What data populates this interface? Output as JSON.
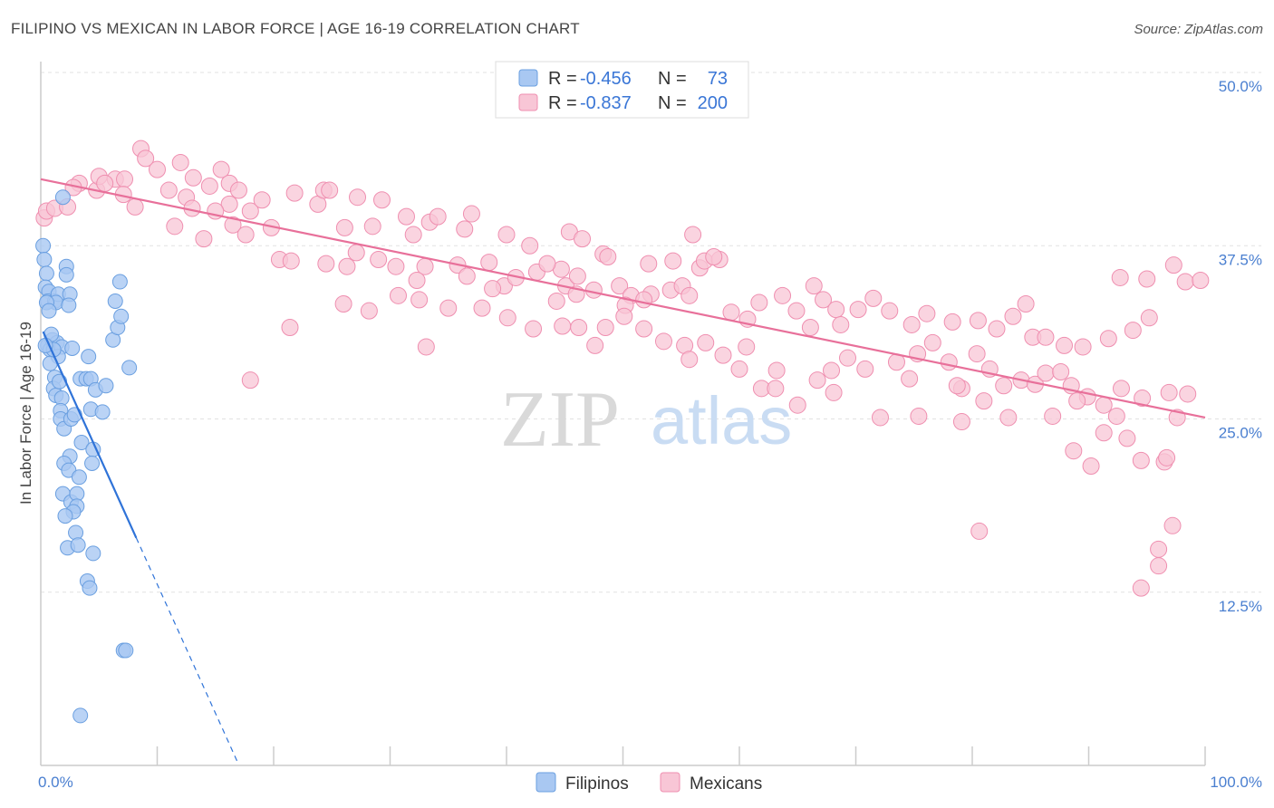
{
  "header": {
    "title": "FILIPINO VS MEXICAN IN LABOR FORCE | AGE 16-19 CORRELATION CHART",
    "source": "Source: ZipAtlas.com"
  },
  "watermark": {
    "zip": "ZIP",
    "atlas": "atlas"
  },
  "legend_top": [
    {
      "r_label": "R =",
      "r_value": "-0.456",
      "n_label": "N =",
      "n_value": "73",
      "color": "#8ab4f0"
    },
    {
      "r_label": "R =",
      "r_value": "-0.837",
      "n_label": "N =",
      "n_value": "200",
      "color": "#f4a6c0"
    }
  ],
  "legend_bottom": [
    {
      "label": "Filipinos",
      "color": "#8ab4f0"
    },
    {
      "label": "Mexicans",
      "color": "#f4a6c0"
    }
  ],
  "colors": {
    "filipino_fill": "#a9c8f2",
    "filipino_stroke": "#6a9fe0",
    "filipino_line": "#2f73d8",
    "mexican_fill": "#f8c6d6",
    "mexican_stroke": "#ef8fb0",
    "mexican_line": "#e8709a",
    "value_text": "#3a76d6",
    "grid": "#e2e2e2"
  },
  "chart_data": {
    "type": "scatter",
    "title": "FILIPINO VS MEXICAN IN LABOR FORCE | AGE 16-19 CORRELATION CHART",
    "xlabel": "",
    "ylabel": "In Labor Force | Age 16-19",
    "xlim": [
      0,
      100
    ],
    "ylim": [
      0,
      50
    ],
    "x_tick_labels": [
      "0.0%",
      "100.0%"
    ],
    "y_ticks": [
      12.5,
      25.0,
      37.5,
      50.0
    ],
    "y_tick_labels": [
      "12.5%",
      "25.0%",
      "37.5%",
      "50.0%"
    ],
    "grid": true,
    "series": [
      {
        "name": "Filipinos",
        "r": -0.456,
        "n": 73,
        "trend": {
          "x_start": 0.2,
          "y_start": 31.3,
          "x_end_solid": 8.2,
          "x_end_dashed": 17.0,
          "slope": -1.86
        },
        "points": [
          [
            0.2,
            37.5
          ],
          [
            0.3,
            36.5
          ],
          [
            0.5,
            35.5
          ],
          [
            0.4,
            34.5
          ],
          [
            0.7,
            34.2
          ],
          [
            0.6,
            33.5
          ],
          [
            1.2,
            33.5
          ],
          [
            1.5,
            34.0
          ],
          [
            2.5,
            34.0
          ],
          [
            1.3,
            33.4
          ],
          [
            2.4,
            33.2
          ],
          [
            2.2,
            36.0
          ],
          [
            2.2,
            35.4
          ],
          [
            1.9,
            41.0
          ],
          [
            0.5,
            33.4
          ],
          [
            0.6,
            30.3
          ],
          [
            0.8,
            30.0
          ],
          [
            1.0,
            30.7
          ],
          [
            1.4,
            30.5
          ],
          [
            1.8,
            30.2
          ],
          [
            1.5,
            29.5
          ],
          [
            0.8,
            29.0
          ],
          [
            1.2,
            28.0
          ],
          [
            1.1,
            27.2
          ],
          [
            1.3,
            26.7
          ],
          [
            1.8,
            26.5
          ],
          [
            3.4,
            27.9
          ],
          [
            3.9,
            27.9
          ],
          [
            4.3,
            27.9
          ],
          [
            4.7,
            27.1
          ],
          [
            1.7,
            25.6
          ],
          [
            1.7,
            25.0
          ],
          [
            2.0,
            24.3
          ],
          [
            2.6,
            25.0
          ],
          [
            4.3,
            25.7
          ],
          [
            5.3,
            25.5
          ],
          [
            3.5,
            23.3
          ],
          [
            4.5,
            22.8
          ],
          [
            2.5,
            22.3
          ],
          [
            2.0,
            21.8
          ],
          [
            2.4,
            21.3
          ],
          [
            3.3,
            20.8
          ],
          [
            4.4,
            21.8
          ],
          [
            6.2,
            30.7
          ],
          [
            6.4,
            33.5
          ],
          [
            6.6,
            31.6
          ],
          [
            6.9,
            32.4
          ],
          [
            7.6,
            28.7
          ],
          [
            1.9,
            19.6
          ],
          [
            2.6,
            19.0
          ],
          [
            3.1,
            19.6
          ],
          [
            3.1,
            18.7
          ],
          [
            2.8,
            18.3
          ],
          [
            2.1,
            18.0
          ],
          [
            3.0,
            16.8
          ],
          [
            2.3,
            15.7
          ],
          [
            3.2,
            15.9
          ],
          [
            4.5,
            15.3
          ],
          [
            4.0,
            13.3
          ],
          [
            4.2,
            12.8
          ],
          [
            7.1,
            8.3
          ],
          [
            7.3,
            8.3
          ],
          [
            3.4,
            3.6
          ],
          [
            6.8,
            34.9
          ],
          [
            0.9,
            31.1
          ],
          [
            1.1,
            30.0
          ],
          [
            2.7,
            30.1
          ],
          [
            4.1,
            29.5
          ],
          [
            0.4,
            30.3
          ],
          [
            2.9,
            25.3
          ],
          [
            5.6,
            27.4
          ],
          [
            0.7,
            32.8
          ],
          [
            1.6,
            27.7
          ]
        ]
      },
      {
        "name": "Mexicans",
        "r": -0.837,
        "n": 200,
        "trend": {
          "x_start": 0,
          "y_start": 42.3,
          "x_end": 100,
          "y_end": 25.1
        },
        "points": [
          [
            0.3,
            39.5
          ],
          [
            0.5,
            40.0
          ],
          [
            1.2,
            40.2
          ],
          [
            2.3,
            40.3
          ],
          [
            3.3,
            42.0
          ],
          [
            2.8,
            41.7
          ],
          [
            4.8,
            41.5
          ],
          [
            5.0,
            42.5
          ],
          [
            6.4,
            42.3
          ],
          [
            5.5,
            42.0
          ],
          [
            7.2,
            42.3
          ],
          [
            7.1,
            41.2
          ],
          [
            8.1,
            40.3
          ],
          [
            10.0,
            43.0
          ],
          [
            12.0,
            43.5
          ],
          [
            13.1,
            42.4
          ],
          [
            11.0,
            41.5
          ],
          [
            12.5,
            41.0
          ],
          [
            8.6,
            44.5
          ],
          [
            9.0,
            43.8
          ],
          [
            14.5,
            41.8
          ],
          [
            15.5,
            43.0
          ],
          [
            16.2,
            42.0
          ],
          [
            17.0,
            41.5
          ],
          [
            16.2,
            40.5
          ],
          [
            13.0,
            40.2
          ],
          [
            15.0,
            40.0
          ],
          [
            18.0,
            40.0
          ],
          [
            19.0,
            40.8
          ],
          [
            21.8,
            41.3
          ],
          [
            23.8,
            40.5
          ],
          [
            24.3,
            41.5
          ],
          [
            24.8,
            41.5
          ],
          [
            27.2,
            41.0
          ],
          [
            29.3,
            40.8
          ],
          [
            31.4,
            39.6
          ],
          [
            33.4,
            39.2
          ],
          [
            34.1,
            39.6
          ],
          [
            36.4,
            38.7
          ],
          [
            37.0,
            39.8
          ],
          [
            32.0,
            38.3
          ],
          [
            26.1,
            38.8
          ],
          [
            28.5,
            38.9
          ],
          [
            19.8,
            38.8
          ],
          [
            16.5,
            39.0
          ],
          [
            17.6,
            38.3
          ],
          [
            14.0,
            38.0
          ],
          [
            11.5,
            38.9
          ],
          [
            20.5,
            36.5
          ],
          [
            21.5,
            36.4
          ],
          [
            24.5,
            36.2
          ],
          [
            26.3,
            36.0
          ],
          [
            27.1,
            37.0
          ],
          [
            29.0,
            36.5
          ],
          [
            30.5,
            36.0
          ],
          [
            33.0,
            36.0
          ],
          [
            32.3,
            35.0
          ],
          [
            35.8,
            36.1
          ],
          [
            36.6,
            35.3
          ],
          [
            38.5,
            36.3
          ],
          [
            39.8,
            34.6
          ],
          [
            38.8,
            34.4
          ],
          [
            40.8,
            35.2
          ],
          [
            42.6,
            35.6
          ],
          [
            44.7,
            35.8
          ],
          [
            45.1,
            34.6
          ],
          [
            46.1,
            35.3
          ],
          [
            47.5,
            34.3
          ],
          [
            48.3,
            36.9
          ],
          [
            49.7,
            34.6
          ],
          [
            50.7,
            33.9
          ],
          [
            52.4,
            34.0
          ],
          [
            54.1,
            34.3
          ],
          [
            55.1,
            34.6
          ],
          [
            55.7,
            33.9
          ],
          [
            56.6,
            35.9
          ],
          [
            57.0,
            36.4
          ],
          [
            58.3,
            36.5
          ],
          [
            51.8,
            33.6
          ],
          [
            50.2,
            33.2
          ],
          [
            46.0,
            34.0
          ],
          [
            44.3,
            33.5
          ],
          [
            43.5,
            36.2
          ],
          [
            42.0,
            37.5
          ],
          [
            40.0,
            38.3
          ],
          [
            45.4,
            38.5
          ],
          [
            46.5,
            38.0
          ],
          [
            48.7,
            36.7
          ],
          [
            52.2,
            36.2
          ],
          [
            54.3,
            36.4
          ],
          [
            56.0,
            38.3
          ],
          [
            57.8,
            36.7
          ],
          [
            59.3,
            32.7
          ],
          [
            60.7,
            32.2
          ],
          [
            61.7,
            33.4
          ],
          [
            63.7,
            33.9
          ],
          [
            64.9,
            32.8
          ],
          [
            66.4,
            34.6
          ],
          [
            67.2,
            33.6
          ],
          [
            66.1,
            31.6
          ],
          [
            68.3,
            32.9
          ],
          [
            68.7,
            31.8
          ],
          [
            70.2,
            32.9
          ],
          [
            71.5,
            33.7
          ],
          [
            72.9,
            32.8
          ],
          [
            74.8,
            31.8
          ],
          [
            76.1,
            32.6
          ],
          [
            78.3,
            32.0
          ],
          [
            80.5,
            32.1
          ],
          [
            82.1,
            31.5
          ],
          [
            83.5,
            32.4
          ],
          [
            84.6,
            33.3
          ],
          [
            85.2,
            30.9
          ],
          [
            86.3,
            30.9
          ],
          [
            87.9,
            30.3
          ],
          [
            89.5,
            30.2
          ],
          [
            91.7,
            30.8
          ],
          [
            93.8,
            31.4
          ],
          [
            95.2,
            32.3
          ],
          [
            92.7,
            35.2
          ],
          [
            95.0,
            35.1
          ],
          [
            97.3,
            36.1
          ],
          [
            98.3,
            34.9
          ],
          [
            99.6,
            35.0
          ],
          [
            73.5,
            29.1
          ],
          [
            74.6,
            27.9
          ],
          [
            75.3,
            29.7
          ],
          [
            76.6,
            30.5
          ],
          [
            78.0,
            29.1
          ],
          [
            79.1,
            27.2
          ],
          [
            80.4,
            29.7
          ],
          [
            81.5,
            28.6
          ],
          [
            82.7,
            27.4
          ],
          [
            84.2,
            27.8
          ],
          [
            85.4,
            27.5
          ],
          [
            86.3,
            28.3
          ],
          [
            87.6,
            28.4
          ],
          [
            88.5,
            27.4
          ],
          [
            89.9,
            26.6
          ],
          [
            91.3,
            26.0
          ],
          [
            92.8,
            27.2
          ],
          [
            94.6,
            26.5
          ],
          [
            96.9,
            26.9
          ],
          [
            98.5,
            26.8
          ],
          [
            70.8,
            28.6
          ],
          [
            69.3,
            29.4
          ],
          [
            67.9,
            28.5
          ],
          [
            66.7,
            27.8
          ],
          [
            65.0,
            26.0
          ],
          [
            63.2,
            28.5
          ],
          [
            61.9,
            27.2
          ],
          [
            60.0,
            28.6
          ],
          [
            58.6,
            29.6
          ],
          [
            57.1,
            30.5
          ],
          [
            55.3,
            30.3
          ],
          [
            53.5,
            30.6
          ],
          [
            51.8,
            31.5
          ],
          [
            50.1,
            32.4
          ],
          [
            48.5,
            31.6
          ],
          [
            46.2,
            31.6
          ],
          [
            44.8,
            31.7
          ],
          [
            42.3,
            31.5
          ],
          [
            40.1,
            32.3
          ],
          [
            37.9,
            33.0
          ],
          [
            35.0,
            33.0
          ],
          [
            32.5,
            33.6
          ],
          [
            30.7,
            33.9
          ],
          [
            28.2,
            32.8
          ],
          [
            26.0,
            33.3
          ],
          [
            21.4,
            31.6
          ],
          [
            33.1,
            30.2
          ],
          [
            47.6,
            30.3
          ],
          [
            55.7,
            29.3
          ],
          [
            60.6,
            30.2
          ],
          [
            63.1,
            27.2
          ],
          [
            68.1,
            26.9
          ],
          [
            72.1,
            25.1
          ],
          [
            75.4,
            25.2
          ],
          [
            78.7,
            27.4
          ],
          [
            81.0,
            26.3
          ],
          [
            86.9,
            25.2
          ],
          [
            89.0,
            26.3
          ],
          [
            91.3,
            24.0
          ],
          [
            92.4,
            25.2
          ],
          [
            93.3,
            23.6
          ],
          [
            94.5,
            22.0
          ],
          [
            96.5,
            21.9
          ],
          [
            97.6,
            25.1
          ],
          [
            88.7,
            22.7
          ],
          [
            90.2,
            21.6
          ],
          [
            83.1,
            25.1
          ],
          [
            79.1,
            24.8
          ],
          [
            96.7,
            22.2
          ],
          [
            97.2,
            17.3
          ],
          [
            96.0,
            14.4
          ],
          [
            96.0,
            15.6
          ],
          [
            94.5,
            12.8
          ],
          [
            80.6,
            16.9
          ],
          [
            18.0,
            27.8
          ]
        ]
      }
    ]
  }
}
